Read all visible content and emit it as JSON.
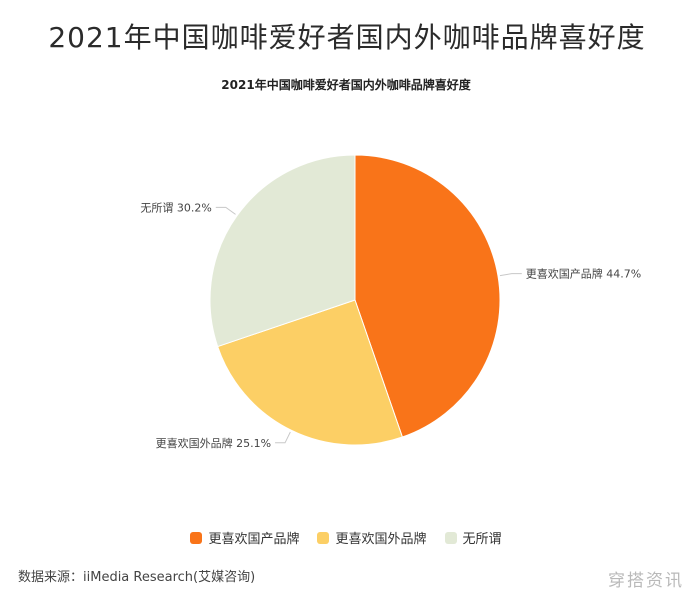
{
  "main_title": "2021年中国咖啡爱好者国内外咖啡品牌喜好度",
  "chart_data": {
    "type": "pie",
    "title": "2021年中国咖啡爱好者国内外咖啡品牌喜好度",
    "categories": [
      "更喜欢国产品牌",
      "更喜欢国外品牌",
      "无所谓"
    ],
    "values": [
      44.7,
      25.1,
      30.2
    ],
    "unit": "%",
    "colors": [
      "#F97419",
      "#FCCF65",
      "#E2E9D6"
    ],
    "labels": [
      "更喜欢国产品牌 44.7%",
      "更喜欢国外品牌 25.1%",
      "无所谓 30.2%"
    ],
    "legend_position": "bottom"
  },
  "legend": [
    {
      "label": "更喜欢国产品牌",
      "color": "#F97419"
    },
    {
      "label": "更喜欢国外品牌",
      "color": "#FCCF65"
    },
    {
      "label": "无所谓",
      "color": "#E2E9D6"
    }
  ],
  "source": "数据来源：iiMedia Research(艾媒咨询)",
  "watermark": "穿搭资讯"
}
